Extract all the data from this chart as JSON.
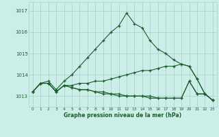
{
  "title": "Graphe pression niveau de la mer (hPa)",
  "bg_color": "#cceee8",
  "grid_color": "#aad4cc",
  "line_color": "#1a5c28",
  "ylim": [
    1012.5,
    1017.4
  ],
  "xlim": [
    -0.5,
    23.5
  ],
  "yticks": [
    1013,
    1014,
    1015,
    1016,
    1017
  ],
  "xticks": [
    0,
    1,
    2,
    3,
    4,
    5,
    6,
    7,
    8,
    9,
    10,
    11,
    12,
    13,
    14,
    15,
    16,
    17,
    18,
    19,
    20,
    21,
    22,
    23
  ],
  "curves": [
    {
      "x": [
        0,
        1,
        2,
        3,
        4,
        5,
        6,
        7,
        8,
        9,
        10,
        11,
        12,
        13,
        14,
        15,
        16,
        17,
        18,
        19,
        20,
        21,
        22,
        23
      ],
      "y": [
        1013.2,
        1013.6,
        1013.7,
        1013.3,
        1013.7,
        1014.0,
        1014.4,
        1014.8,
        1015.2,
        1015.6,
        1016.0,
        1016.3,
        1016.9,
        1016.4,
        1016.2,
        1015.6,
        1015.2,
        1015.0,
        1014.7,
        1014.5,
        1014.4,
        1013.8,
        1013.1,
        1012.8
      ]
    },
    {
      "x": [
        0,
        1,
        2,
        3,
        4,
        5,
        6,
        7,
        8,
        9,
        10,
        11,
        12,
        13,
        14,
        15,
        16,
        17,
        18,
        19,
        20,
        21,
        22,
        23
      ],
      "y": [
        1013.2,
        1013.6,
        1013.6,
        1013.2,
        1013.5,
        1013.5,
        1013.6,
        1013.6,
        1013.7,
        1013.7,
        1013.8,
        1013.9,
        1014.0,
        1014.1,
        1014.2,
        1014.2,
        1014.3,
        1014.4,
        1014.4,
        1014.5,
        1014.4,
        1013.8,
        1013.1,
        1012.8
      ]
    },
    {
      "x": [
        0,
        1,
        2,
        3,
        4,
        5,
        6,
        7,
        8,
        9,
        10,
        11,
        12,
        13,
        14,
        15,
        16,
        17,
        18,
        19,
        20,
        21,
        22,
        23
      ],
      "y": [
        1013.2,
        1013.6,
        1013.6,
        1013.2,
        1013.5,
        1013.4,
        1013.3,
        1013.3,
        1013.2,
        1013.2,
        1013.1,
        1013.1,
        1013.0,
        1013.0,
        1013.0,
        1013.0,
        1012.9,
        1012.9,
        1012.9,
        1012.9,
        1013.7,
        1013.1,
        1013.1,
        1012.8
      ]
    },
    {
      "x": [
        0,
        1,
        2,
        3,
        4,
        5,
        6,
        7,
        8,
        9,
        10,
        11,
        12,
        13,
        14,
        15,
        16,
        17,
        18,
        19,
        20,
        21,
        22,
        23
      ],
      "y": [
        1013.2,
        1013.6,
        1013.6,
        1013.2,
        1013.5,
        1013.4,
        1013.3,
        1013.3,
        1013.2,
        1013.1,
        1013.1,
        1013.0,
        1013.0,
        1013.0,
        1013.0,
        1012.9,
        1012.9,
        1012.9,
        1012.9,
        1012.9,
        1013.7,
        1013.1,
        1013.1,
        1012.8
      ]
    }
  ]
}
